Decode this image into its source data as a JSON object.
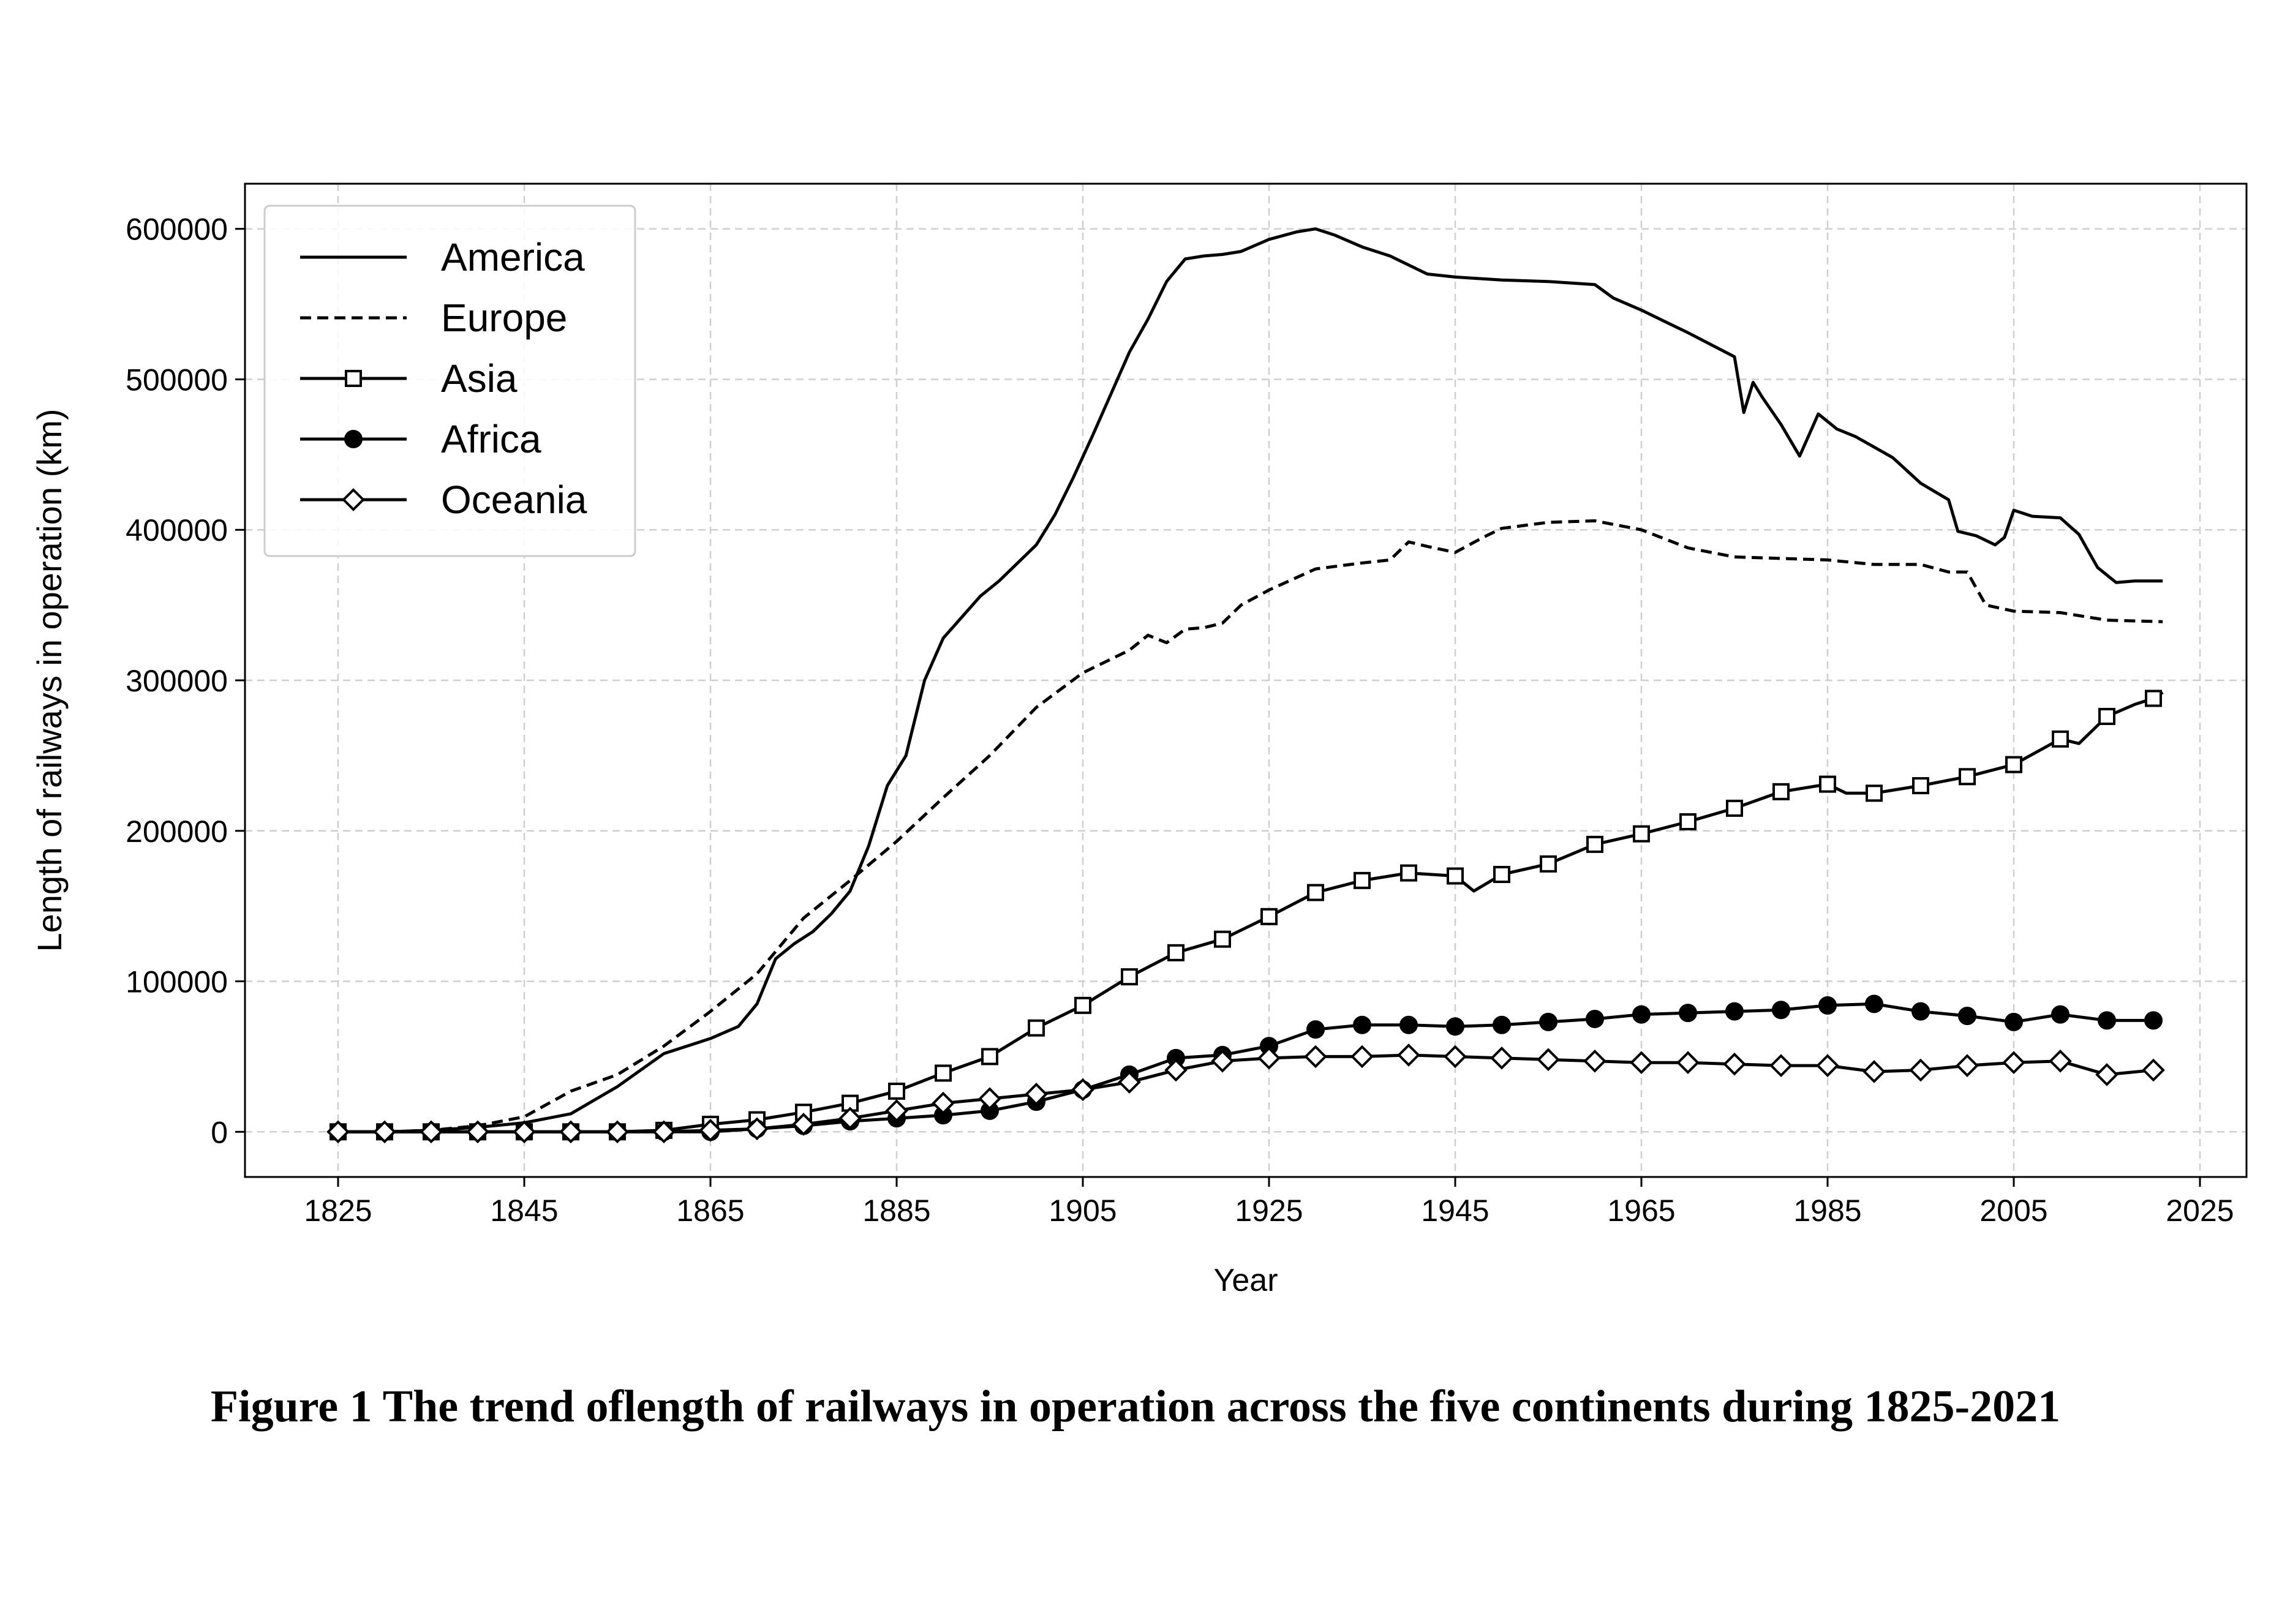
{
  "caption": "Figure 1 The trend oflength of railways in operation across the five continents during 1825-2021",
  "chart_data": {
    "type": "line",
    "xlabel": "Year",
    "ylabel": "Length of railways in operation (km)",
    "xlim": [
      1815,
      2030
    ],
    "ylim": [
      -30000,
      630000
    ],
    "xticks": [
      1825,
      1845,
      1865,
      1885,
      1905,
      1925,
      1945,
      1965,
      1985,
      2005,
      2025
    ],
    "yticks": [
      0,
      100000,
      200000,
      300000,
      400000,
      500000,
      600000
    ],
    "grid": true,
    "legend_position": "top-left",
    "series": [
      {
        "name": "America",
        "linestyle": "solid",
        "marker": "none",
        "x": [
          1825,
          1830,
          1835,
          1840,
          1845,
          1850,
          1855,
          1860,
          1865,
          1868,
          1870,
          1872,
          1874,
          1876,
          1878,
          1880,
          1882,
          1884,
          1886,
          1888,
          1890,
          1892,
          1894,
          1896,
          1898,
          1900,
          1902,
          1904,
          1906,
          1908,
          1910,
          1912,
          1914,
          1916,
          1918,
          1920,
          1922,
          1925,
          1928,
          1930,
          1932,
          1935,
          1938,
          1940,
          1942,
          1945,
          1950,
          1955,
          1960,
          1962,
          1965,
          1968,
          1970,
          1975,
          1976,
          1977,
          1978,
          1980,
          1982,
          1983,
          1984,
          1986,
          1988,
          1990,
          1992,
          1995,
          1998,
          1999,
          2001,
          2003,
          2004,
          2005,
          2007,
          2010,
          2012,
          2014,
          2016,
          2018,
          2021
        ],
        "values": [
          0,
          0,
          1000,
          3000,
          6000,
          12000,
          30000,
          52000,
          62000,
          70000,
          85000,
          115000,
          125000,
          133000,
          145000,
          160000,
          190000,
          230000,
          250000,
          300000,
          328000,
          342000,
          356000,
          366000,
          378000,
          390000,
          410000,
          435000,
          462000,
          490000,
          518000,
          540000,
          565000,
          580000,
          582000,
          583000,
          585000,
          593000,
          598000,
          600000,
          596000,
          588000,
          582000,
          576000,
          570000,
          568000,
          566000,
          565000,
          563000,
          554000,
          546000,
          537000,
          531000,
          515000,
          478000,
          498000,
          488000,
          470000,
          449000,
          463000,
          477000,
          467000,
          462000,
          455000,
          448000,
          431000,
          420000,
          399000,
          396000,
          390000,
          395000,
          413000,
          409000,
          408000,
          397000,
          375000,
          365000,
          366000,
          366000
        ]
      },
      {
        "name": "Europe",
        "linestyle": "dashed",
        "marker": "none",
        "x": [
          1825,
          1830,
          1835,
          1840,
          1845,
          1850,
          1855,
          1860,
          1865,
          1870,
          1875,
          1880,
          1885,
          1890,
          1895,
          1900,
          1905,
          1910,
          1912,
          1914,
          1916,
          1918,
          1920,
          1922,
          1925,
          1930,
          1935,
          1938,
          1940,
          1942,
          1945,
          1948,
          1950,
          1955,
          1960,
          1965,
          1970,
          1975,
          1980,
          1985,
          1990,
          1995,
          1998,
          2000,
          2002,
          2005,
          2010,
          2015,
          2021
        ],
        "values": [
          0,
          0,
          1000,
          4000,
          10000,
          27000,
          38000,
          57000,
          80000,
          105000,
          142000,
          167000,
          193000,
          222000,
          250000,
          282000,
          305000,
          320000,
          330000,
          325000,
          334000,
          335000,
          338000,
          350000,
          360000,
          374000,
          378000,
          380000,
          392000,
          389000,
          385000,
          395000,
          401000,
          405000,
          406000,
          400000,
          388000,
          382000,
          381000,
          380000,
          377000,
          377000,
          372000,
          372000,
          350000,
          346000,
          345000,
          340000,
          339000
        ]
      },
      {
        "name": "Asia",
        "linestyle": "solid",
        "marker": "square",
        "x": [
          1825,
          1830,
          1835,
          1840,
          1845,
          1850,
          1855,
          1860,
          1865,
          1870,
          1875,
          1880,
          1885,
          1890,
          1895,
          1900,
          1905,
          1910,
          1915,
          1920,
          1925,
          1930,
          1935,
          1940,
          1945,
          1947,
          1950,
          1955,
          1960,
          1965,
          1970,
          1975,
          1980,
          1985,
          1987,
          1990,
          1992,
          1995,
          2000,
          2005,
          2010,
          2012,
          2015,
          2018,
          2020,
          2021
        ],
        "values": [
          0,
          0,
          0,
          0,
          0,
          0,
          0,
          1000,
          5000,
          8000,
          13000,
          19000,
          27000,
          39000,
          50000,
          69000,
          84000,
          103000,
          119000,
          128000,
          143000,
          159000,
          167000,
          172000,
          170000,
          160000,
          171000,
          178000,
          191000,
          198000,
          206000,
          215000,
          226000,
          231000,
          225000,
          225000,
          227000,
          230000,
          236000,
          244000,
          261000,
          258000,
          276000,
          284000,
          288000,
          292000
        ]
      },
      {
        "name": "Africa",
        "linestyle": "solid",
        "marker": "circle",
        "x": [
          1825,
          1830,
          1835,
          1840,
          1845,
          1850,
          1855,
          1860,
          1865,
          1870,
          1875,
          1880,
          1885,
          1890,
          1895,
          1900,
          1905,
          1910,
          1915,
          1920,
          1925,
          1930,
          1935,
          1940,
          1945,
          1950,
          1955,
          1960,
          1965,
          1970,
          1975,
          1980,
          1985,
          1990,
          1995,
          2000,
          2005,
          2010,
          2015,
          2020
        ],
        "values": [
          0,
          0,
          0,
          0,
          0,
          0,
          0,
          0,
          0,
          2000,
          4000,
          7000,
          9000,
          11000,
          14000,
          20000,
          28000,
          38000,
          49000,
          51000,
          57000,
          68000,
          71000,
          71000,
          70000,
          71000,
          73000,
          75000,
          78000,
          79000,
          80000,
          81000,
          84000,
          85000,
          80000,
          77000,
          73000,
          78000,
          74000,
          74000
        ]
      },
      {
        "name": "Oceania",
        "linestyle": "solid",
        "marker": "diamond",
        "x": [
          1825,
          1830,
          1835,
          1840,
          1845,
          1850,
          1855,
          1860,
          1865,
          1870,
          1875,
          1880,
          1885,
          1890,
          1895,
          1900,
          1905,
          1910,
          1915,
          1920,
          1925,
          1930,
          1935,
          1940,
          1945,
          1950,
          1955,
          1960,
          1965,
          1970,
          1975,
          1980,
          1985,
          1990,
          1995,
          2000,
          2005,
          2010,
          2015,
          2020
        ],
        "values": [
          0,
          0,
          0,
          0,
          0,
          0,
          0,
          0,
          1000,
          2000,
          5000,
          9000,
          14000,
          19000,
          22000,
          25000,
          28000,
          33000,
          41000,
          47000,
          49000,
          50000,
          50000,
          51000,
          50000,
          49000,
          48000,
          47000,
          46000,
          46000,
          45000,
          44000,
          44000,
          40000,
          41000,
          44000,
          46000,
          47000,
          38000,
          41000
        ]
      }
    ]
  }
}
